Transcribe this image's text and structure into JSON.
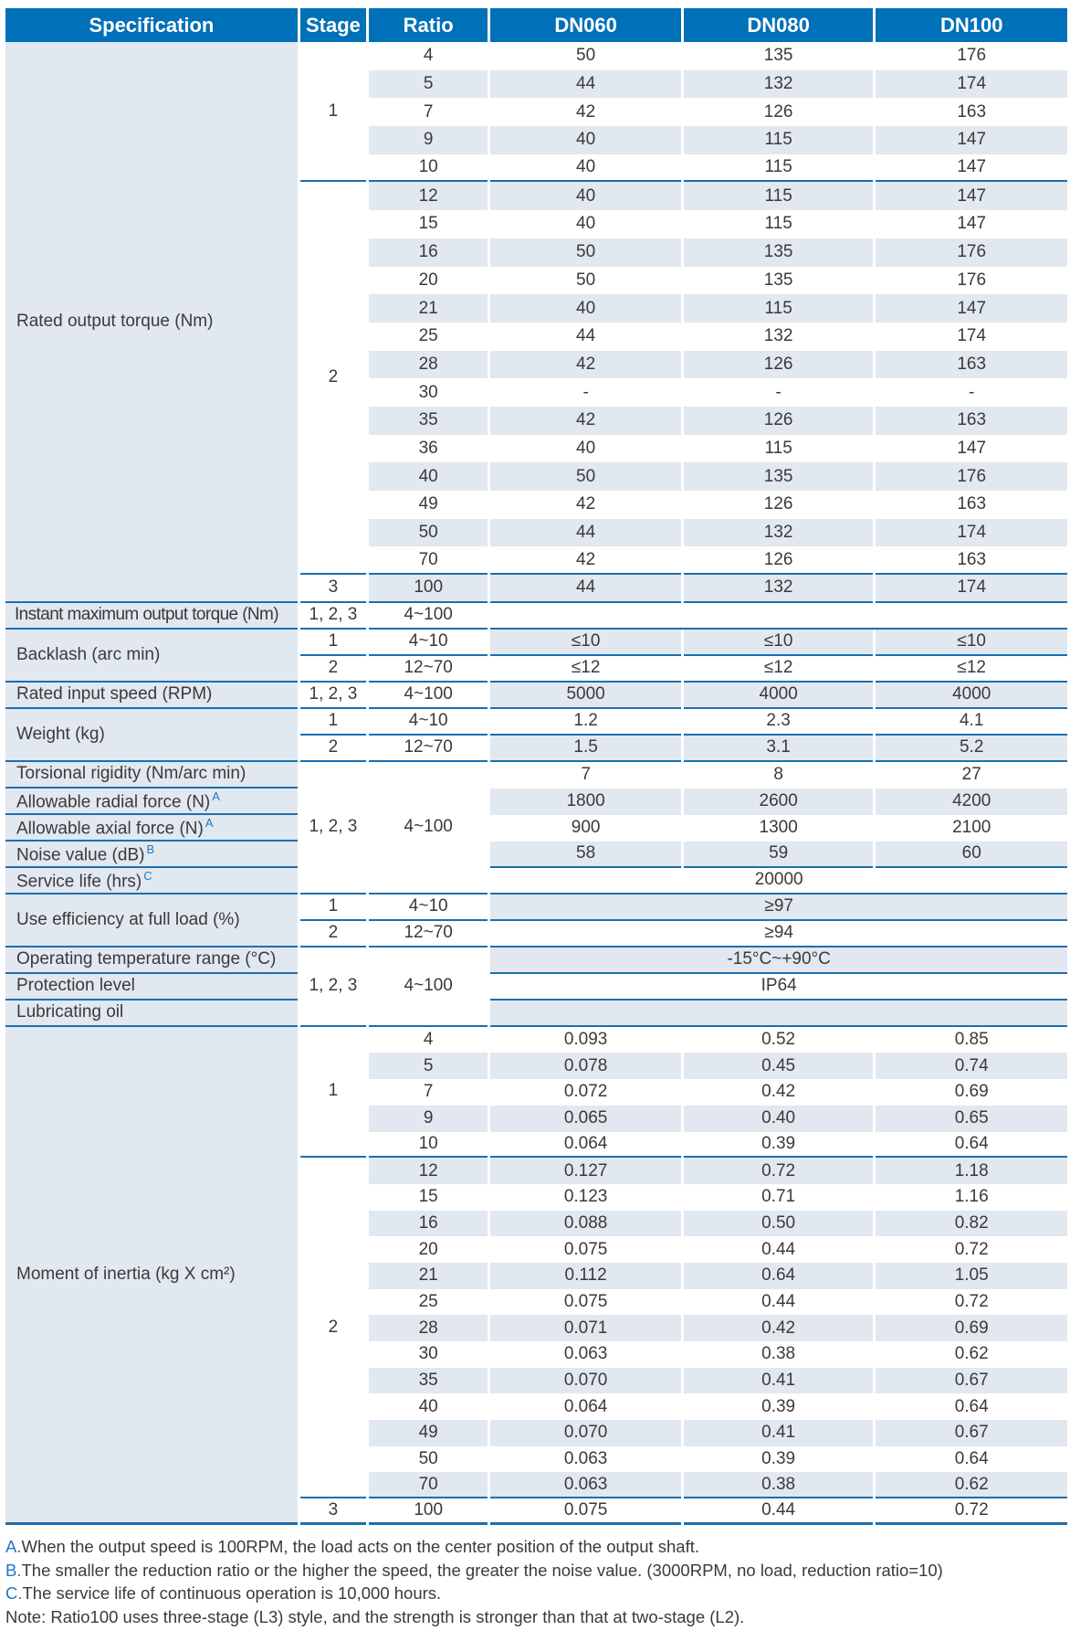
{
  "header": {
    "specification": "Specification",
    "stage": "Stage",
    "ratio": "Ratio",
    "models": [
      "DN060",
      "DN080",
      "DN100"
    ]
  },
  "colors": {
    "header_bg": "#0070b8",
    "shade": "#e1e8ef",
    "rule": "#1b6fb0",
    "note_letter": "#1f78c8"
  },
  "rows": [
    {
      "spec": "Rated output torque (Nm)",
      "stage": "1",
      "ratio": "4",
      "values": [
        "50",
        "135",
        "176"
      ]
    },
    {
      "ratio": "5",
      "values": [
        "44",
        "132",
        "174"
      ]
    },
    {
      "ratio": "7",
      "values": [
        "42",
        "126",
        "163"
      ]
    },
    {
      "ratio": "9",
      "values": [
        "40",
        "115",
        "147"
      ]
    },
    {
      "ratio": "10",
      "values": [
        "40",
        "115",
        "147"
      ]
    },
    {
      "stage": "2",
      "ratio": "12",
      "values": [
        "40",
        "115",
        "147"
      ]
    },
    {
      "ratio": "15",
      "values": [
        "40",
        "115",
        "147"
      ]
    },
    {
      "ratio": "16",
      "values": [
        "50",
        "135",
        "176"
      ]
    },
    {
      "ratio": "20",
      "values": [
        "50",
        "135",
        "176"
      ]
    },
    {
      "ratio": "21",
      "values": [
        "40",
        "115",
        "147"
      ]
    },
    {
      "ratio": "25",
      "values": [
        "44",
        "132",
        "174"
      ]
    },
    {
      "ratio": "28",
      "values": [
        "42",
        "126",
        "163"
      ]
    },
    {
      "ratio": "30",
      "values": [
        "-",
        "-",
        "-"
      ]
    },
    {
      "ratio": "35",
      "values": [
        "42",
        "126",
        "163"
      ]
    },
    {
      "ratio": "36",
      "values": [
        "40",
        "115",
        "147"
      ]
    },
    {
      "ratio": "40",
      "values": [
        "50",
        "135",
        "176"
      ]
    },
    {
      "ratio": "49",
      "values": [
        "42",
        "126",
        "163"
      ]
    },
    {
      "ratio": "50",
      "values": [
        "44",
        "132",
        "174"
      ]
    },
    {
      "ratio": "70",
      "values": [
        "42",
        "126",
        "163"
      ]
    },
    {
      "stage": "3",
      "ratio": "100",
      "values": [
        "44",
        "132",
        "174"
      ]
    },
    {
      "spec": "Instant maximum output torque (Nm)",
      "stage": "1, 2, 3",
      "ratio": "4~100",
      "values": []
    },
    {
      "spec": "Backlash (arc min)",
      "stage": "1",
      "ratio": "4~10",
      "values": [
        "≤10",
        "≤10",
        "≤10"
      ]
    },
    {
      "stage": "2",
      "ratio": "12~70",
      "values": [
        "≤12",
        "≤12",
        "≤12"
      ]
    },
    {
      "spec": "Rated input speed (RPM)",
      "stage": "1, 2, 3",
      "ratio": "4~100",
      "values": [
        "5000",
        "4000",
        "4000"
      ]
    },
    {
      "spec": "Weight (kg)",
      "stage": "1",
      "ratio": "4~10",
      "values": [
        "1.2",
        "2.3",
        "4.1"
      ]
    },
    {
      "stage": "2",
      "ratio": "12~70",
      "values": [
        "1.5",
        "3.1",
        "5.2"
      ]
    },
    {
      "spec": "Torsional rigidity (Nm/arc min)",
      "stage": "1, 2, 3",
      "ratio": "4~100",
      "values": [
        "7",
        "8",
        "27"
      ]
    },
    {
      "spec": "Allowable radial force (N)",
      "sup": "A",
      "values": [
        "1800",
        "2600",
        "4200"
      ]
    },
    {
      "spec": "Allowable axial force (N)",
      "sup": "A",
      "values": [
        "900",
        "1300",
        "2100"
      ]
    },
    {
      "spec": "Noise value (dB)",
      "sup": "B",
      "values": [
        "58",
        "59",
        "60"
      ]
    },
    {
      "spec": "Service life (hrs)",
      "sup": "C",
      "values": [
        "20000"
      ]
    },
    {
      "spec": "Use efficiency at full load (%)",
      "stage": "1",
      "ratio": "4~10",
      "values": [
        "≥97"
      ]
    },
    {
      "stage": "2",
      "ratio": "12~70",
      "values": [
        "≥94"
      ]
    },
    {
      "spec": "Operating temperature range (°C)",
      "stage": "1, 2, 3",
      "ratio": "4~100",
      "values": [
        "-15°C~+90°C"
      ]
    },
    {
      "spec": "Protection level",
      "values": [
        "IP64"
      ]
    },
    {
      "spec": "Lubricating oil",
      "values": []
    },
    {
      "spec": "Moment of inertia (kg X cm²)",
      "stage": "1",
      "ratio": "4",
      "values": [
        "0.093",
        "0.52",
        "0.85"
      ]
    },
    {
      "ratio": "5",
      "values": [
        "0.078",
        "0.45",
        "0.74"
      ]
    },
    {
      "ratio": "7",
      "values": [
        "0.072",
        "0.42",
        "0.69"
      ]
    },
    {
      "ratio": "9",
      "values": [
        "0.065",
        "0.40",
        "0.65"
      ]
    },
    {
      "ratio": "10",
      "values": [
        "0.064",
        "0.39",
        "0.64"
      ]
    },
    {
      "stage": "2",
      "ratio": "12",
      "values": [
        "0.127",
        "0.72",
        "1.18"
      ]
    },
    {
      "ratio": "15",
      "values": [
        "0.123",
        "0.71",
        "1.16"
      ]
    },
    {
      "ratio": "16",
      "values": [
        "0.088",
        "0.50",
        "0.82"
      ]
    },
    {
      "ratio": "20",
      "values": [
        "0.075",
        "0.44",
        "0.72"
      ]
    },
    {
      "ratio": "21",
      "values": [
        "0.112",
        "0.64",
        "1.05"
      ]
    },
    {
      "ratio": "25",
      "values": [
        "0.075",
        "0.44",
        "0.72"
      ]
    },
    {
      "ratio": "28",
      "values": [
        "0.071",
        "0.42",
        "0.69"
      ]
    },
    {
      "ratio": "30",
      "values": [
        "0.063",
        "0.38",
        "0.62"
      ]
    },
    {
      "ratio": "35",
      "values": [
        "0.070",
        "0.41",
        "0.67"
      ]
    },
    {
      "ratio": "40",
      "values": [
        "0.064",
        "0.39",
        "0.64"
      ]
    },
    {
      "ratio": "49",
      "values": [
        "0.070",
        "0.41",
        "0.67"
      ]
    },
    {
      "ratio": "50",
      "values": [
        "0.063",
        "0.39",
        "0.64"
      ]
    },
    {
      "ratio": "70",
      "values": [
        "0.063",
        "0.38",
        "0.62"
      ]
    },
    {
      "stage": "3",
      "ratio": "100",
      "values": [
        "0.075",
        "0.44",
        "0.72"
      ]
    }
  ],
  "notes": [
    {
      "letter": "A.",
      "text": "When the output speed is 100RPM, the load acts on the center position of the output shaft."
    },
    {
      "letter": "B.",
      "text": "The smaller the reduction ratio or the higher the speed, the greater the noise value. (3000RPM, no load, reduction ratio=10)"
    },
    {
      "letter": "C.",
      "text": "The service life of continuous operation is 10,000 hours."
    },
    {
      "letter": "",
      "text": "Note: Ratio100 uses three-stage (L3) style, and the strength is stronger than that at two-stage (L2)."
    }
  ]
}
